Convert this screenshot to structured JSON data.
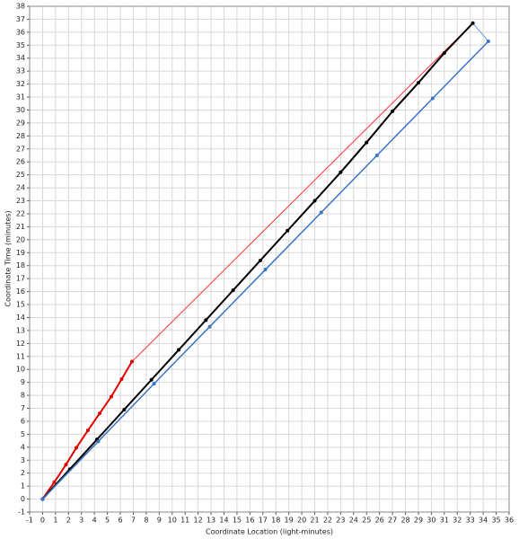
{
  "chart_data": {
    "type": "line",
    "xlabel": "Coordinate Location (light-minutes)",
    "ylabel": "Coordinate Time (minutes)",
    "xlim": [
      -1,
      36
    ],
    "xticks": [
      -1,
      0,
      1,
      2,
      3,
      4,
      5,
      6,
      7,
      8,
      9,
      10,
      11,
      12,
      13,
      14,
      15,
      16,
      17,
      18,
      19,
      20,
      21,
      22,
      23,
      24,
      25,
      26,
      27,
      28,
      29,
      30,
      31,
      32,
      33,
      34,
      35,
      36
    ],
    "ylim": [
      -1,
      38
    ],
    "yticks": [
      -1,
      0,
      1,
      2,
      3,
      4,
      5,
      6,
      7,
      8,
      9,
      10,
      11,
      12,
      13,
      14,
      15,
      16,
      17,
      18,
      19,
      20,
      21,
      22,
      23,
      24,
      25,
      26,
      27,
      28,
      29,
      30,
      31,
      32,
      33,
      34,
      35,
      36,
      37,
      38
    ],
    "grid": true,
    "series": [
      {
        "color": "#ff3030",
        "line_width": 1,
        "markers": false,
        "x": [
          6.9,
          33.2
        ],
        "values": [
          10.6,
          36.7
        ]
      },
      {
        "color": "#6a9ad8",
        "line_width": 1,
        "markers": false,
        "x": [
          33.2,
          34.4
        ],
        "values": [
          36.7,
          35.3
        ]
      },
      {
        "color": "#e00000",
        "line_width": 2,
        "markers": true,
        "x": [
          0,
          0.9,
          1.8,
          2.6,
          3.5,
          4.4,
          5.3,
          6.1,
          6.9
        ],
        "values": [
          0,
          1.3,
          2.65,
          3.95,
          5.3,
          6.6,
          7.9,
          9.25,
          10.6
        ]
      },
      {
        "color": "#000000",
        "line_width": 2,
        "markers": true,
        "x": [
          0,
          2.1,
          4.2,
          6.3,
          8.4,
          10.5,
          12.6,
          14.7,
          16.8,
          18.9,
          21,
          23,
          25,
          27,
          29,
          31,
          33.2
        ],
        "values": [
          0,
          2.3,
          4.6,
          6.9,
          9.2,
          11.5,
          13.8,
          16.1,
          18.4,
          20.7,
          23,
          25.2,
          27.5,
          29.9,
          32.1,
          34.4,
          36.7
        ]
      },
      {
        "color": "#3a74c4",
        "line_width": 1.5,
        "markers": true,
        "x": [
          0,
          4.3,
          8.6,
          12.9,
          17.2,
          21.5,
          25.8,
          30.1,
          34.4
        ],
        "values": [
          0,
          4.45,
          8.9,
          13.3,
          17.7,
          22.1,
          26.5,
          30.9,
          35.3
        ]
      }
    ]
  }
}
